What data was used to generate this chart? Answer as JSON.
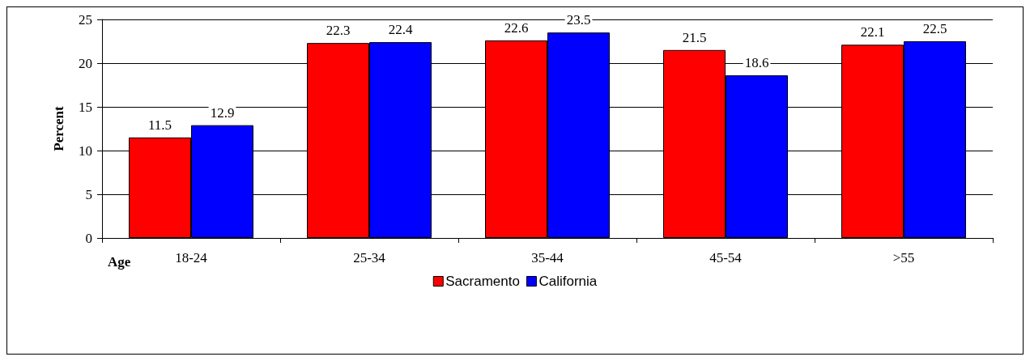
{
  "chart_data": {
    "type": "bar",
    "xlabel": "Age",
    "ylabel": "Percent",
    "categories": [
      "18-24",
      "25-34",
      "35-44",
      "45-54",
      ">55"
    ],
    "series": [
      {
        "name": "Sacramento",
        "color": "#ff0000",
        "values": [
          11.5,
          22.3,
          22.6,
          21.5,
          22.1
        ]
      },
      {
        "name": "California",
        "color": "#0000ff",
        "values": [
          12.9,
          22.4,
          23.5,
          18.6,
          22.5
        ]
      }
    ],
    "ylim": [
      0,
      25
    ],
    "yticks": [
      0,
      5,
      10,
      15,
      20,
      25
    ],
    "grid": "y",
    "legend": "bottom",
    "data_labels": true
  }
}
